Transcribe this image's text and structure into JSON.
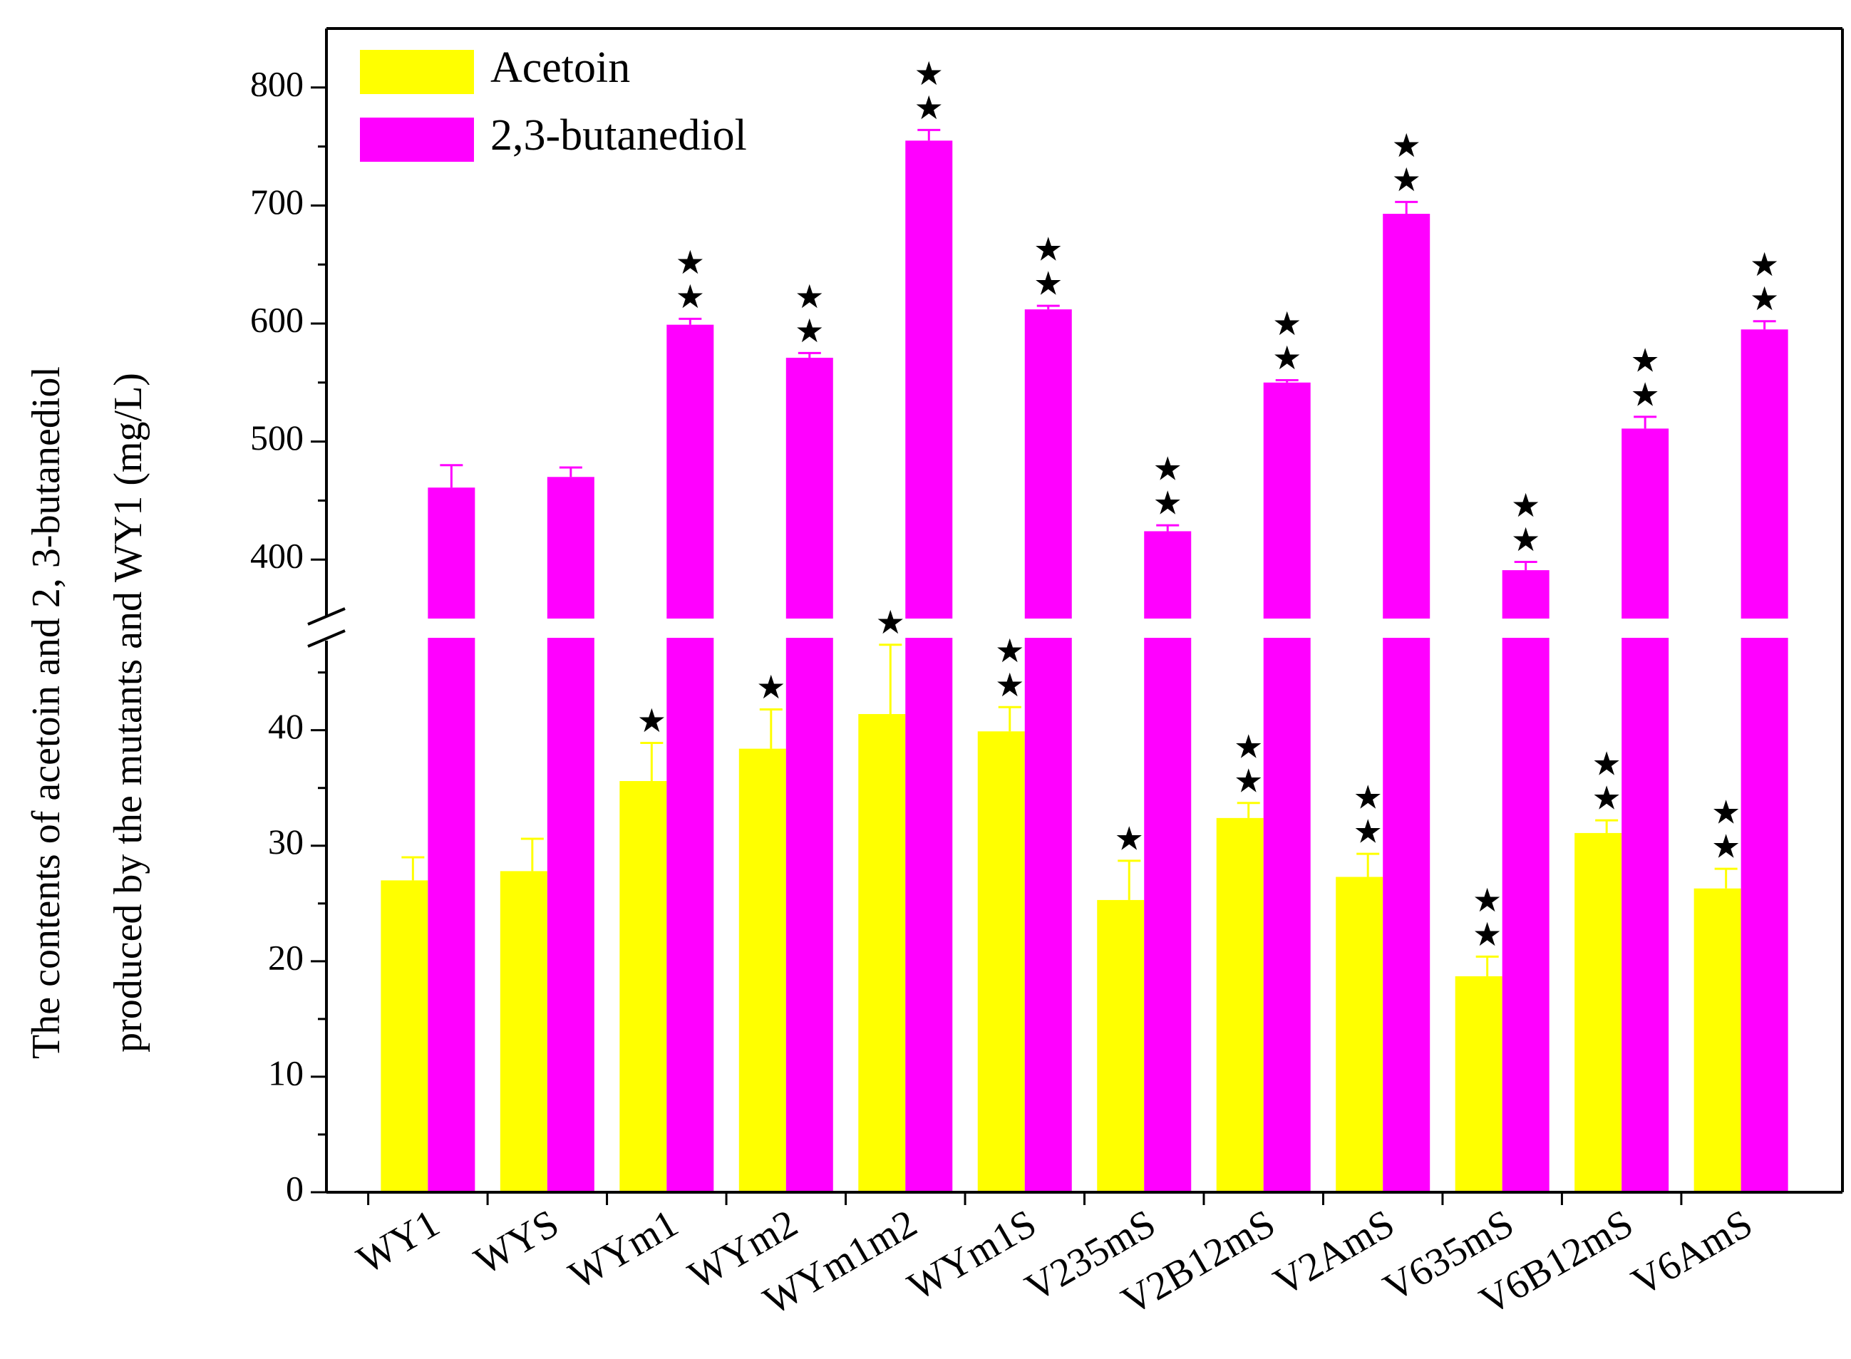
{
  "chart_data": {
    "type": "bar",
    "categories": [
      "WY1",
      "WYS",
      "WYm1",
      "WYm2",
      "WYm1m2",
      "WYm1S",
      "V235mS",
      "V2B12mS",
      "V2AmS",
      "V635mS",
      "V6B12mS",
      "V6AmS"
    ],
    "series": [
      {
        "name": "Acetoin",
        "color": "#ffff00",
        "values": [
          27.0,
          27.8,
          35.6,
          38.4,
          41.4,
          39.9,
          25.3,
          32.4,
          27.3,
          18.7,
          31.1,
          26.3
        ],
        "errors": [
          2.0,
          2.8,
          3.3,
          3.4,
          6.0,
          2.1,
          3.4,
          1.3,
          2.0,
          1.7,
          1.1,
          1.7
        ],
        "significance": [
          "",
          "",
          "★",
          "★",
          "★",
          "★★",
          "★",
          "★★",
          "★★",
          "★★",
          "★★",
          "★★"
        ]
      },
      {
        "name": "2,3-butanediol",
        "color": "#ff00ff",
        "values": [
          461,
          470,
          599,
          571,
          755,
          612,
          424,
          550,
          693,
          391,
          511,
          595
        ],
        "errors": [
          19,
          8,
          5,
          4,
          9,
          3,
          5,
          2,
          10,
          7,
          10,
          7
        ],
        "significance": [
          "",
          "",
          "★★",
          "★★",
          "★★",
          "★★",
          "★★",
          "★★",
          "★★",
          "★★",
          "★★",
          "★★"
        ]
      }
    ],
    "ylabel_line1": "The contents of acetoin and 2, 3-butanediol",
    "ylabel_line2": "produced by the mutants and WY1 (mg/L)",
    "y_axis_break": true,
    "ylim_lower": [
      0,
      48
    ],
    "ylim_upper": [
      350,
      850
    ],
    "yticks_lower": [
      "0",
      "10",
      "20",
      "30",
      "40"
    ],
    "yticks_upper": [
      "400",
      "500",
      "600",
      "700",
      "800"
    ],
    "legend_position": "top-left"
  }
}
